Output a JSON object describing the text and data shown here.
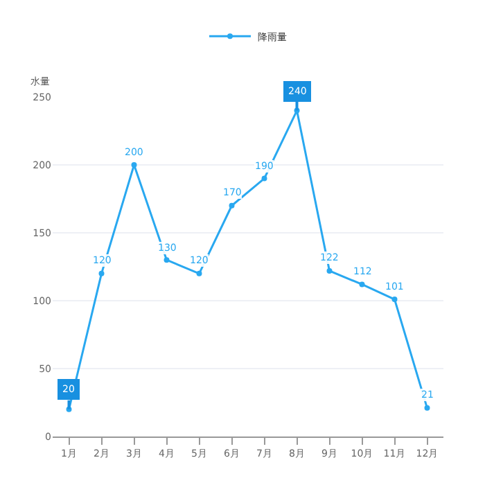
{
  "chart_data": {
    "type": "line",
    "ylabel": "水量",
    "categories": [
      "1月",
      "2月",
      "3月",
      "4月",
      "5月",
      "6月",
      "7月",
      "8月",
      "9月",
      "10月",
      "11月",
      "12月"
    ],
    "series": [
      {
        "name": "降雨量",
        "color": "#29a8f0",
        "values": [
          20,
          120,
          200,
          130,
          120,
          170,
          190,
          240,
          122,
          112,
          101,
          21
        ]
      }
    ],
    "ylim": [
      0,
      250
    ],
    "yticks": [
      0,
      50,
      100,
      150,
      200,
      250
    ],
    "grid": "y",
    "legend": "top",
    "marker": "circle",
    "line_style": "solid",
    "data_labels": true
  }
}
